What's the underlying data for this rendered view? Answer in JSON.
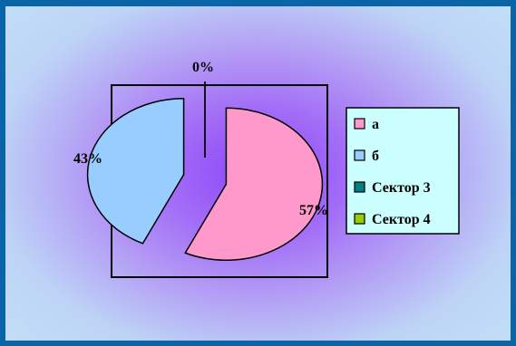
{
  "chart_data": {
    "type": "pie",
    "categories": [
      "а",
      "б",
      "Сектор 3",
      "Сектор 4"
    ],
    "values": [
      57,
      43,
      0,
      0
    ],
    "data_labels": [
      "57%",
      "43%",
      "0%",
      "0%"
    ],
    "legend": [
      "а",
      "б",
      "Сектор 3",
      "Сектор 4"
    ],
    "legend_position": "right",
    "colors": [
      "#ff99cc",
      "#99ccff",
      "#008080",
      "#99cc00"
    ],
    "exploded": true
  }
}
